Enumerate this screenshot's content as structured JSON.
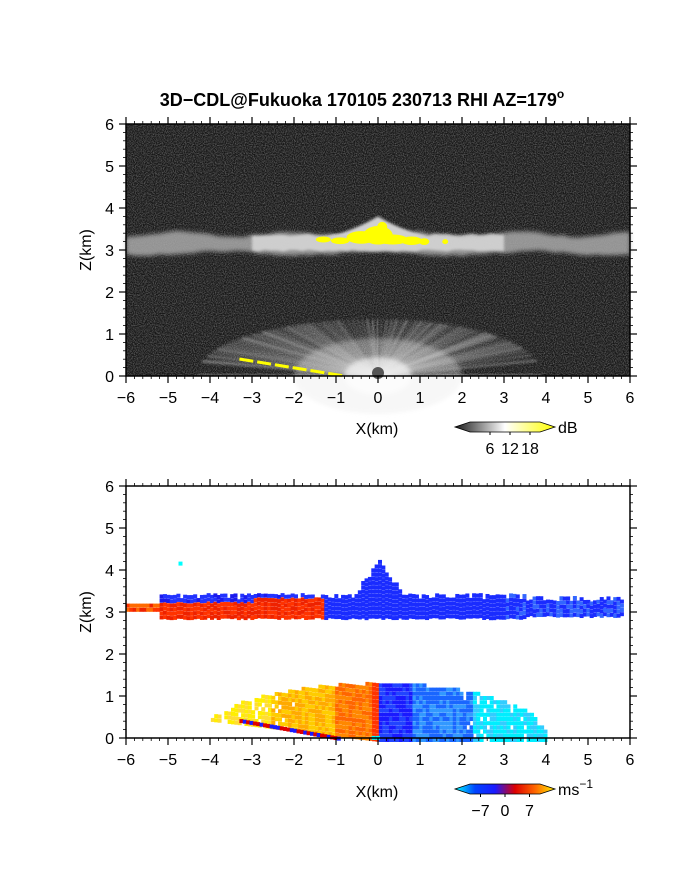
{
  "chart_data": [
    {
      "type": "heatmap",
      "panel": "reflectivity",
      "title": "3D−CDL@Fukuoka 170105 230713 RHI AZ=179",
      "title_superscript": "o",
      "xlabel": "X(km)",
      "ylabel": "Z(km)",
      "xlim": [
        -6,
        6
      ],
      "ylim": [
        0,
        6
      ],
      "xticks": [
        "−6",
        "−5",
        "−4",
        "−3",
        "−2",
        "−1",
        "0",
        "1",
        "2",
        "3",
        "4",
        "5",
        "6"
      ],
      "yticks": [
        "0",
        "1",
        "2",
        "3",
        "4",
        "5",
        "6"
      ],
      "grid": false,
      "colorbar": {
        "unit": "dB",
        "ticks": [
          "6",
          "12",
          "18"
        ],
        "tick_values": [
          6,
          12,
          18
        ],
        "range": [
          0,
          21
        ],
        "colors": [
          "#1a1a1a",
          "#ffffff",
          "#ffff00"
        ]
      },
      "features": {
        "cloud_layer": {
          "x": [
            -6,
            6
          ],
          "z_base": 2.95,
          "z_top": 3.35,
          "core_top_z": 3.8,
          "core_x": 0,
          "max_db_region_x": [
            -1.5,
            1.6
          ]
        },
        "clutter_fan": {
          "x": [
            -4.3,
            3.9
          ],
          "z_max": 1.3,
          "apex_x": 0
        },
        "ground_edge": {
          "x": [
            -3.3,
            -0.8
          ],
          "z": [
            0.5,
            0.0
          ]
        }
      }
    },
    {
      "type": "heatmap",
      "panel": "velocity",
      "xlabel": "X(km)",
      "ylabel": "Z(km)",
      "xlim": [
        -6,
        6
      ],
      "ylim": [
        0,
        6
      ],
      "xticks": [
        "−6",
        "−5",
        "−4",
        "−3",
        "−2",
        "−1",
        "0",
        "1",
        "2",
        "3",
        "4",
        "5",
        "6"
      ],
      "yticks": [
        "0",
        "1",
        "2",
        "3",
        "4",
        "5",
        "6"
      ],
      "grid": false,
      "colorbar": {
        "unit": "ms",
        "unit_superscript": "−1",
        "ticks": [
          "−7",
          "0",
          "7"
        ],
        "tick_values": [
          -7,
          0,
          7
        ],
        "range": [
          -10,
          10
        ],
        "colors": [
          "#00ffff",
          "#0044ff",
          "#1a1aff",
          "#dd0000",
          "#ff6600",
          "#ffee00"
        ]
      },
      "features": {
        "cloud_layer": {
          "x": [
            -6,
            5.8
          ],
          "z_base": 2.95,
          "z_top": 3.4,
          "negative_velocity_x": [
            -1.5,
            5.8
          ],
          "positive_velocity_x": [
            -6,
            -1.3
          ],
          "core_top_z": 4.2
        },
        "low_fan": {
          "x": [
            -4.3,
            4.0
          ],
          "z_max": 1.3,
          "positive_side_x": [
            -4.3,
            0
          ],
          "negative_side_x": [
            0,
            4.0
          ]
        }
      }
    }
  ]
}
